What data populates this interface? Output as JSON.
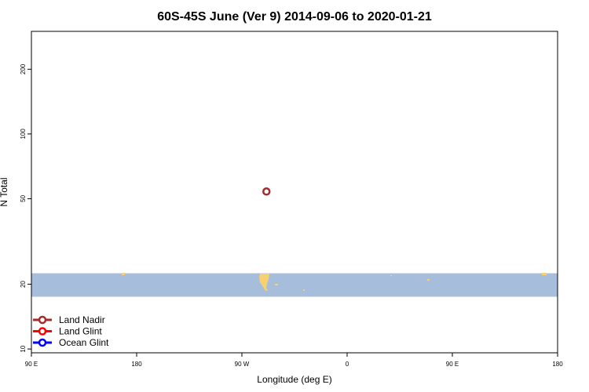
{
  "chart_data": {
    "type": "scatter",
    "title": "60S-45S June (Ver 9)   2014-09-06 to 2020-01-21",
    "xlabel": "Longitude (deg E)",
    "ylabel": "N Total",
    "x_ticks": [
      {
        "value": 90,
        "label": "90 E"
      },
      {
        "value": 180,
        "label": "180"
      },
      {
        "value": 270,
        "label": "90 W"
      },
      {
        "value": 360,
        "label": "0"
      },
      {
        "value": 450,
        "label": "90 E"
      },
      {
        "value": 540,
        "label": "180"
      }
    ],
    "y_ticks": [
      10,
      20,
      50,
      100,
      200
    ],
    "y_scale": "log",
    "xlim": [
      90,
      540
    ],
    "ylim": [
      9.6,
      300
    ],
    "band": {
      "y_min": 17.5,
      "y_max": 22.5,
      "color": "#a7bddc",
      "land_color": "#f7d070"
    },
    "series": [
      {
        "name": "Land Nadir",
        "color": "#a52a2a",
        "points": [
          {
            "x": 291,
            "y": 54
          }
        ]
      },
      {
        "name": "Land Glint",
        "color": "#ff0000",
        "points": []
      },
      {
        "name": "Ocean Glint",
        "color": "#0000ff",
        "points": []
      }
    ],
    "legend_position": "bottom-left"
  }
}
